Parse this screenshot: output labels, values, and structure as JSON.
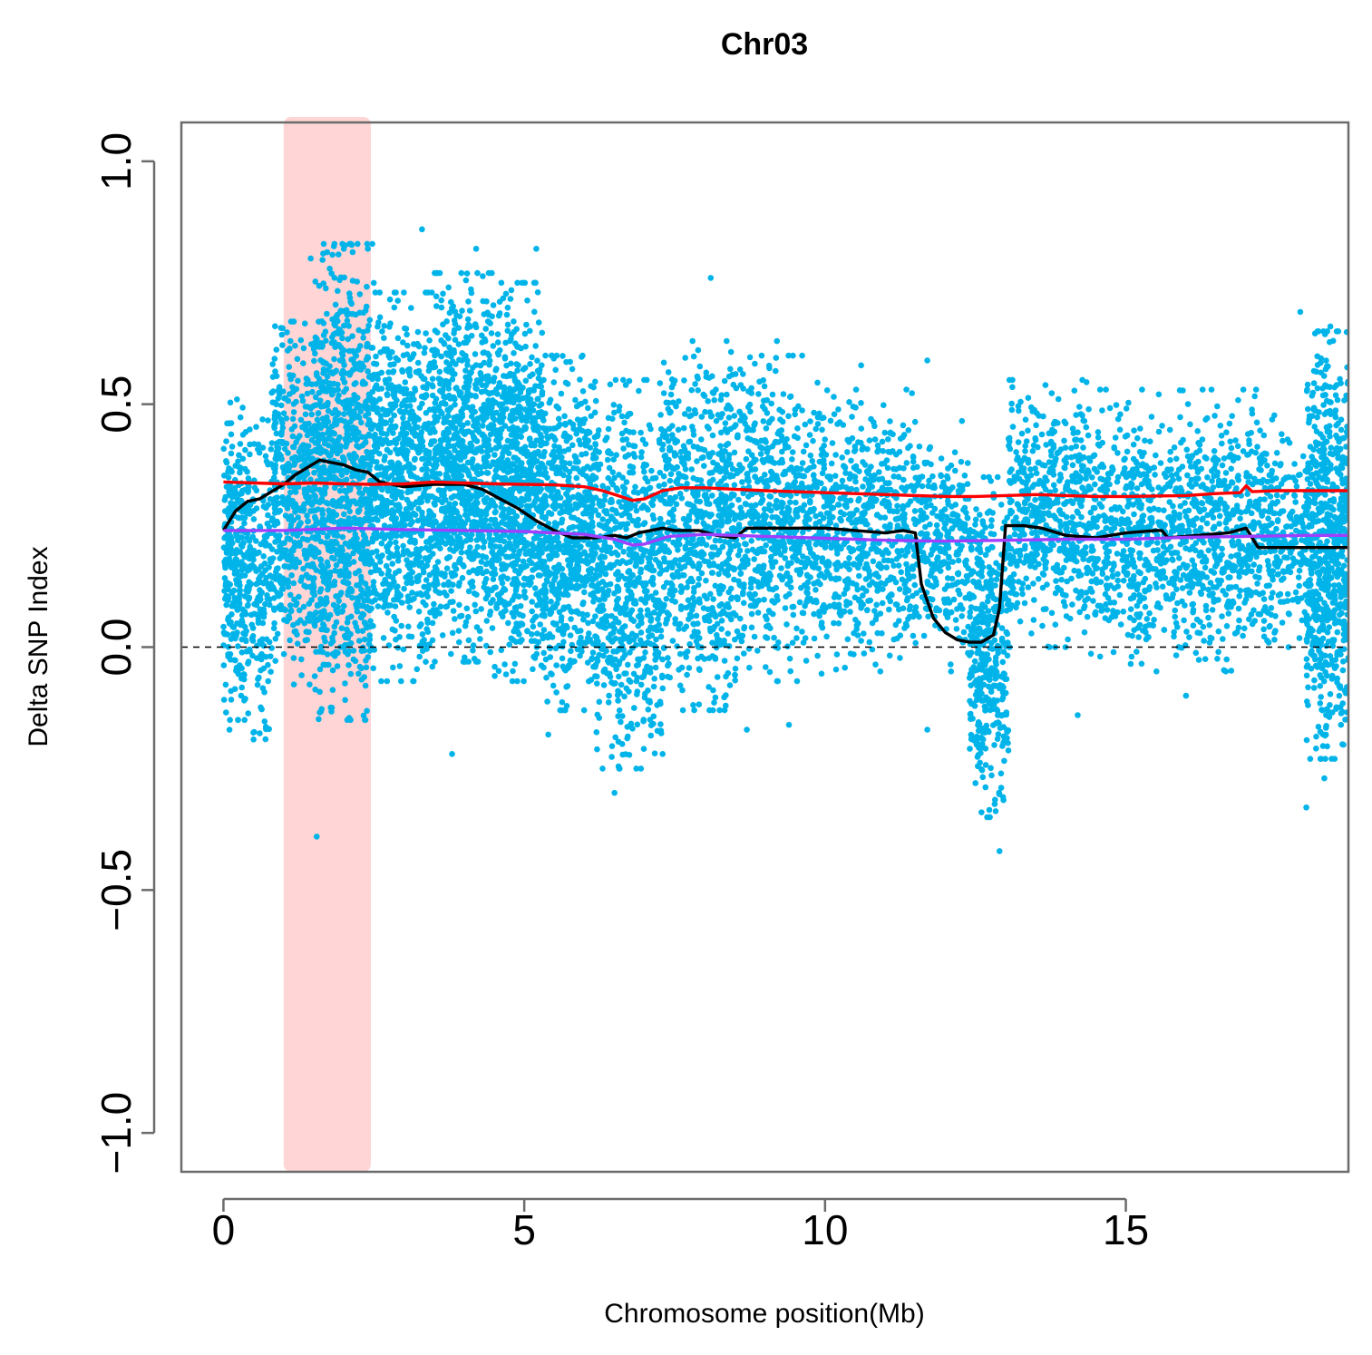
{
  "chart_data": {
    "type": "scatter",
    "title": "Chr03",
    "xlabel": "Chromosome position(Mb)",
    "ylabel": "Delta SNP Index",
    "xlim": [
      -0.7,
      18.7
    ],
    "ylim": [
      -1.08,
      1.08
    ],
    "x_ticks": [
      0,
      5,
      10,
      15
    ],
    "y_ticks": [
      -1.0,
      -0.5,
      0.0,
      0.5,
      1.0
    ],
    "x_tick_labels": [
      "0",
      "5",
      "10",
      "15"
    ],
    "y_tick_labels": [
      "−1.0",
      "−0.5",
      "0.0",
      "0.5",
      "1.0"
    ],
    "grid": false,
    "highlight_region": {
      "x_start": 1.0,
      "x_end": 2.45,
      "color": "#ffb3b3"
    },
    "reference_line": {
      "y": 0.0,
      "style": "dashed",
      "color": "#000000"
    },
    "point_color": "#00b4ea",
    "point_clusters": [
      {
        "x0": 0.0,
        "x1": 0.45,
        "lo": -0.1,
        "hi": 0.46,
        "n": 320
      },
      {
        "x0": 0.45,
        "x1": 0.8,
        "lo": -0.15,
        "hi": 0.42,
        "n": 150
      },
      {
        "x0": 0.8,
        "x1": 1.5,
        "lo": -0.05,
        "hi": 0.62,
        "n": 450
      },
      {
        "x0": 1.5,
        "x1": 2.5,
        "lo": -0.1,
        "hi": 0.78,
        "n": 950
      },
      {
        "x0": 2.5,
        "x1": 3.5,
        "lo": -0.02,
        "hi": 0.68,
        "n": 750
      },
      {
        "x0": 3.5,
        "x1": 4.5,
        "lo": 0.02,
        "hi": 0.72,
        "n": 850
      },
      {
        "x0": 4.5,
        "x1": 5.3,
        "lo": -0.02,
        "hi": 0.7,
        "n": 750
      },
      {
        "x0": 5.3,
        "x1": 6.2,
        "lo": -0.08,
        "hi": 0.55,
        "n": 650
      },
      {
        "x0": 6.2,
        "x1": 7.3,
        "lo": -0.2,
        "hi": 0.5,
        "n": 650
      },
      {
        "x0": 7.3,
        "x1": 8.6,
        "lo": -0.08,
        "hi": 0.58,
        "n": 700
      },
      {
        "x0": 8.6,
        "x1": 10.0,
        "lo": -0.02,
        "hi": 0.55,
        "n": 650
      },
      {
        "x0": 10.0,
        "x1": 11.5,
        "lo": 0.0,
        "hi": 0.48,
        "n": 550
      },
      {
        "x0": 11.5,
        "x1": 12.4,
        "lo": 0.0,
        "hi": 0.42,
        "n": 300
      },
      {
        "x0": 12.4,
        "x1": 13.05,
        "lo": -0.3,
        "hi": 0.3,
        "n": 420
      },
      {
        "x0": 13.05,
        "x1": 14.4,
        "lo": 0.05,
        "hi": 0.5,
        "n": 550
      },
      {
        "x0": 14.4,
        "x1": 16.2,
        "lo": 0.0,
        "hi": 0.48,
        "n": 650
      },
      {
        "x0": 16.2,
        "x1": 17.5,
        "lo": 0.0,
        "hi": 0.48,
        "n": 500
      },
      {
        "x0": 17.5,
        "x1": 18.0,
        "lo": 0.05,
        "hi": 0.4,
        "n": 140
      },
      {
        "x0": 18.0,
        "x1": 18.7,
        "lo": -0.18,
        "hi": 0.6,
        "n": 700
      }
    ],
    "outliers": [
      {
        "x": 1.55,
        "y": -0.39
      },
      {
        "x": 12.9,
        "y": -0.42
      },
      {
        "x": 12.6,
        "y": -0.34
      },
      {
        "x": 18.0,
        "y": -0.33
      },
      {
        "x": 18.3,
        "y": -0.27
      },
      {
        "x": 18.6,
        "y": -0.2
      },
      {
        "x": 6.5,
        "y": -0.3
      },
      {
        "x": 7.3,
        "y": -0.22
      },
      {
        "x": 3.8,
        "y": -0.22
      },
      {
        "x": 5.4,
        "y": -0.18
      },
      {
        "x": 8.7,
        "y": -0.17
      },
      {
        "x": 9.4,
        "y": -0.16
      },
      {
        "x": 11.7,
        "y": -0.17
      },
      {
        "x": 14.2,
        "y": -0.14
      },
      {
        "x": 0.1,
        "y": -0.17
      },
      {
        "x": 0.5,
        "y": -0.19
      },
      {
        "x": 3.3,
        "y": 0.86
      },
      {
        "x": 4.2,
        "y": 0.82
      },
      {
        "x": 5.2,
        "y": 0.82
      },
      {
        "x": 1.45,
        "y": 0.8
      },
      {
        "x": 2.0,
        "y": 0.82
      },
      {
        "x": 2.4,
        "y": 0.82
      },
      {
        "x": 8.1,
        "y": 0.76
      },
      {
        "x": 11.7,
        "y": 0.59
      },
      {
        "x": 17.9,
        "y": 0.69
      },
      {
        "x": 18.4,
        "y": 0.66
      },
      {
        "x": 9.2,
        "y": 0.63
      },
      {
        "x": 10.6,
        "y": 0.58
      },
      {
        "x": 12.5,
        "y": -0.28
      },
      {
        "x": 16.0,
        "y": -0.1
      }
    ],
    "series": [
      {
        "color": "#000000",
        "x": [
          0.0,
          0.2,
          0.4,
          0.6,
          0.8,
          1.0,
          1.2,
          1.4,
          1.6,
          1.8,
          2.0,
          2.2,
          2.4,
          2.6,
          3.0,
          3.5,
          4.0,
          4.3,
          4.6,
          4.9,
          5.2,
          5.5,
          5.8,
          6.0,
          6.2,
          6.5,
          6.7,
          6.9,
          7.1,
          7.3,
          7.5,
          7.7,
          7.9,
          8.2,
          8.5,
          8.7,
          9.0,
          9.5,
          10.0,
          10.5,
          11.0,
          11.3,
          11.5,
          11.6,
          11.8,
          12.0,
          12.2,
          12.4,
          12.6,
          12.8,
          12.9,
          13.0,
          13.3,
          13.6,
          14.0,
          14.5,
          15.0,
          15.5,
          15.6,
          15.7,
          16.2,
          16.7,
          17.0,
          17.2,
          17.5,
          18.0,
          18.7
        ],
        "y": [
          0.24,
          0.28,
          0.3,
          0.305,
          0.32,
          0.335,
          0.355,
          0.37,
          0.385,
          0.38,
          0.375,
          0.365,
          0.36,
          0.34,
          0.33,
          0.335,
          0.335,
          0.325,
          0.305,
          0.285,
          0.26,
          0.24,
          0.225,
          0.225,
          0.225,
          0.23,
          0.225,
          0.235,
          0.24,
          0.245,
          0.24,
          0.24,
          0.24,
          0.23,
          0.225,
          0.245,
          0.245,
          0.245,
          0.245,
          0.24,
          0.235,
          0.24,
          0.235,
          0.13,
          0.06,
          0.03,
          0.015,
          0.01,
          0.01,
          0.025,
          0.08,
          0.25,
          0.25,
          0.245,
          0.23,
          0.225,
          0.235,
          0.24,
          0.24,
          0.225,
          0.23,
          0.235,
          0.245,
          0.205,
          0.205,
          0.205,
          0.205
        ]
      },
      {
        "color": "#ff0000",
        "x": [
          0.0,
          0.5,
          1.0,
          1.5,
          2.0,
          2.5,
          3.0,
          3.5,
          4.0,
          4.5,
          5.0,
          5.5,
          6.0,
          6.3,
          6.6,
          6.8,
          7.0,
          7.3,
          7.6,
          8.0,
          8.5,
          9.0,
          10.0,
          11.0,
          11.5,
          12.0,
          12.5,
          13.0,
          13.5,
          14.0,
          14.5,
          15.0,
          16.0,
          16.5,
          16.9,
          17.0,
          17.1,
          17.5,
          18.0,
          18.7
        ],
        "y": [
          0.34,
          0.338,
          0.336,
          0.338,
          0.336,
          0.335,
          0.336,
          0.34,
          0.338,
          0.336,
          0.335,
          0.334,
          0.33,
          0.322,
          0.31,
          0.302,
          0.305,
          0.322,
          0.328,
          0.328,
          0.325,
          0.322,
          0.318,
          0.314,
          0.312,
          0.31,
          0.31,
          0.312,
          0.314,
          0.312,
          0.31,
          0.31,
          0.312,
          0.316,
          0.318,
          0.332,
          0.32,
          0.322,
          0.322,
          0.322
        ]
      },
      {
        "color": "#a040ff",
        "x": [
          0.0,
          1.0,
          2.0,
          3.0,
          4.0,
          5.0,
          6.0,
          6.5,
          6.8,
          7.0,
          7.4,
          8.0,
          9.0,
          10.0,
          11.0,
          12.0,
          13.0,
          14.0,
          15.0,
          16.0,
          17.0,
          18.0,
          18.7
        ],
        "y": [
          0.24,
          0.24,
          0.245,
          0.242,
          0.24,
          0.238,
          0.232,
          0.222,
          0.21,
          0.212,
          0.228,
          0.232,
          0.228,
          0.224,
          0.22,
          0.218,
          0.22,
          0.222,
          0.222,
          0.226,
          0.228,
          0.23,
          0.23
        ]
      }
    ]
  }
}
